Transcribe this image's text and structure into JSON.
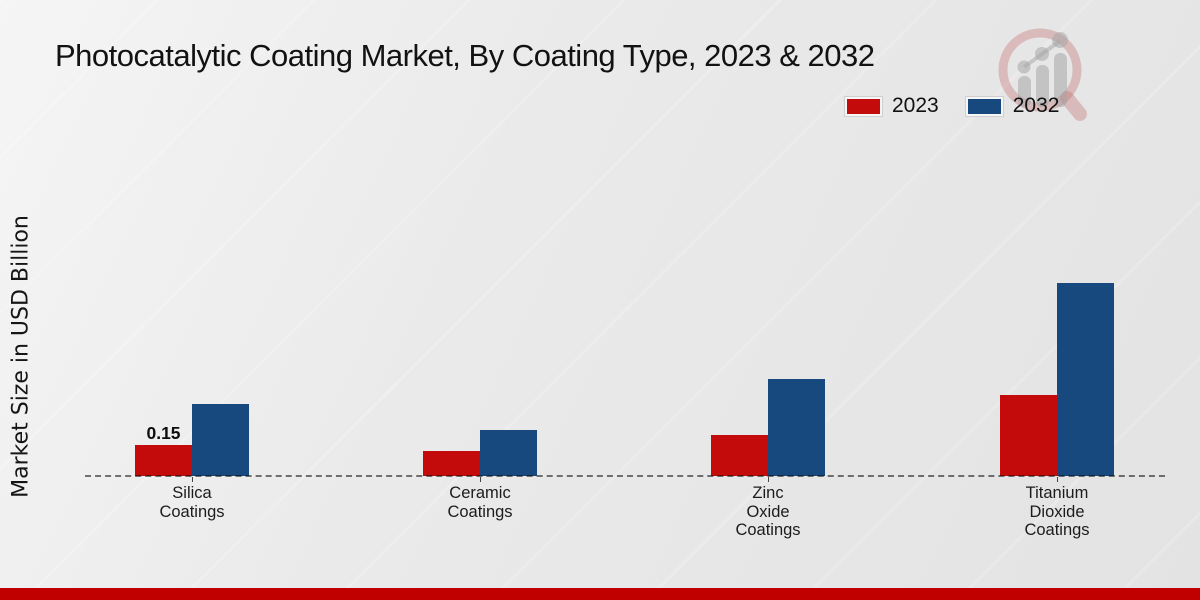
{
  "title": "Photocatalytic Coating Market, By Coating Type, 2023 & 2032",
  "ylabel": "Market Size in USD Billion",
  "legend": [
    {
      "label": "2023",
      "color": "#c40b0b"
    },
    {
      "label": "2032",
      "color": "#17497e"
    }
  ],
  "colors": {
    "series_2023": "#c40b0b",
    "series_2032": "#17497e",
    "footer_strip": "#c00000",
    "baseline": "#1a1a1a"
  },
  "watermark_icon": "magnifier-growth-chart-logo",
  "chart_data": {
    "type": "bar",
    "title": "Photocatalytic Coating Market, By Coating Type, 2023 & 2032",
    "xlabel": "",
    "ylabel": "Market Size in USD Billion",
    "categories": [
      "Silica Coatings",
      "Ceramic Coatings",
      "Zinc Oxide Coatings",
      "Titanium Dioxide Coatings"
    ],
    "categories_display": [
      [
        "Silica",
        "Coatings"
      ],
      [
        "Ceramic",
        "Coatings"
      ],
      [
        "Zinc",
        "Oxide",
        "Coatings"
      ],
      [
        "Titanium",
        "Dioxide",
        "Coatings"
      ]
    ],
    "series": [
      {
        "name": "2023",
        "color": "#c40b0b",
        "values": [
          0.15,
          0.12,
          0.2,
          0.39
        ]
      },
      {
        "name": "2032",
        "color": "#17497e",
        "values": [
          0.35,
          0.22,
          0.47,
          0.93
        ]
      }
    ],
    "bar_label": {
      "series_index": 0,
      "category_index": 0,
      "text": "0.15"
    },
    "ylim": [
      0,
      1.0
    ],
    "grid": false,
    "axis_style": "dashed-baseline-only",
    "legend_position": "top-right"
  }
}
